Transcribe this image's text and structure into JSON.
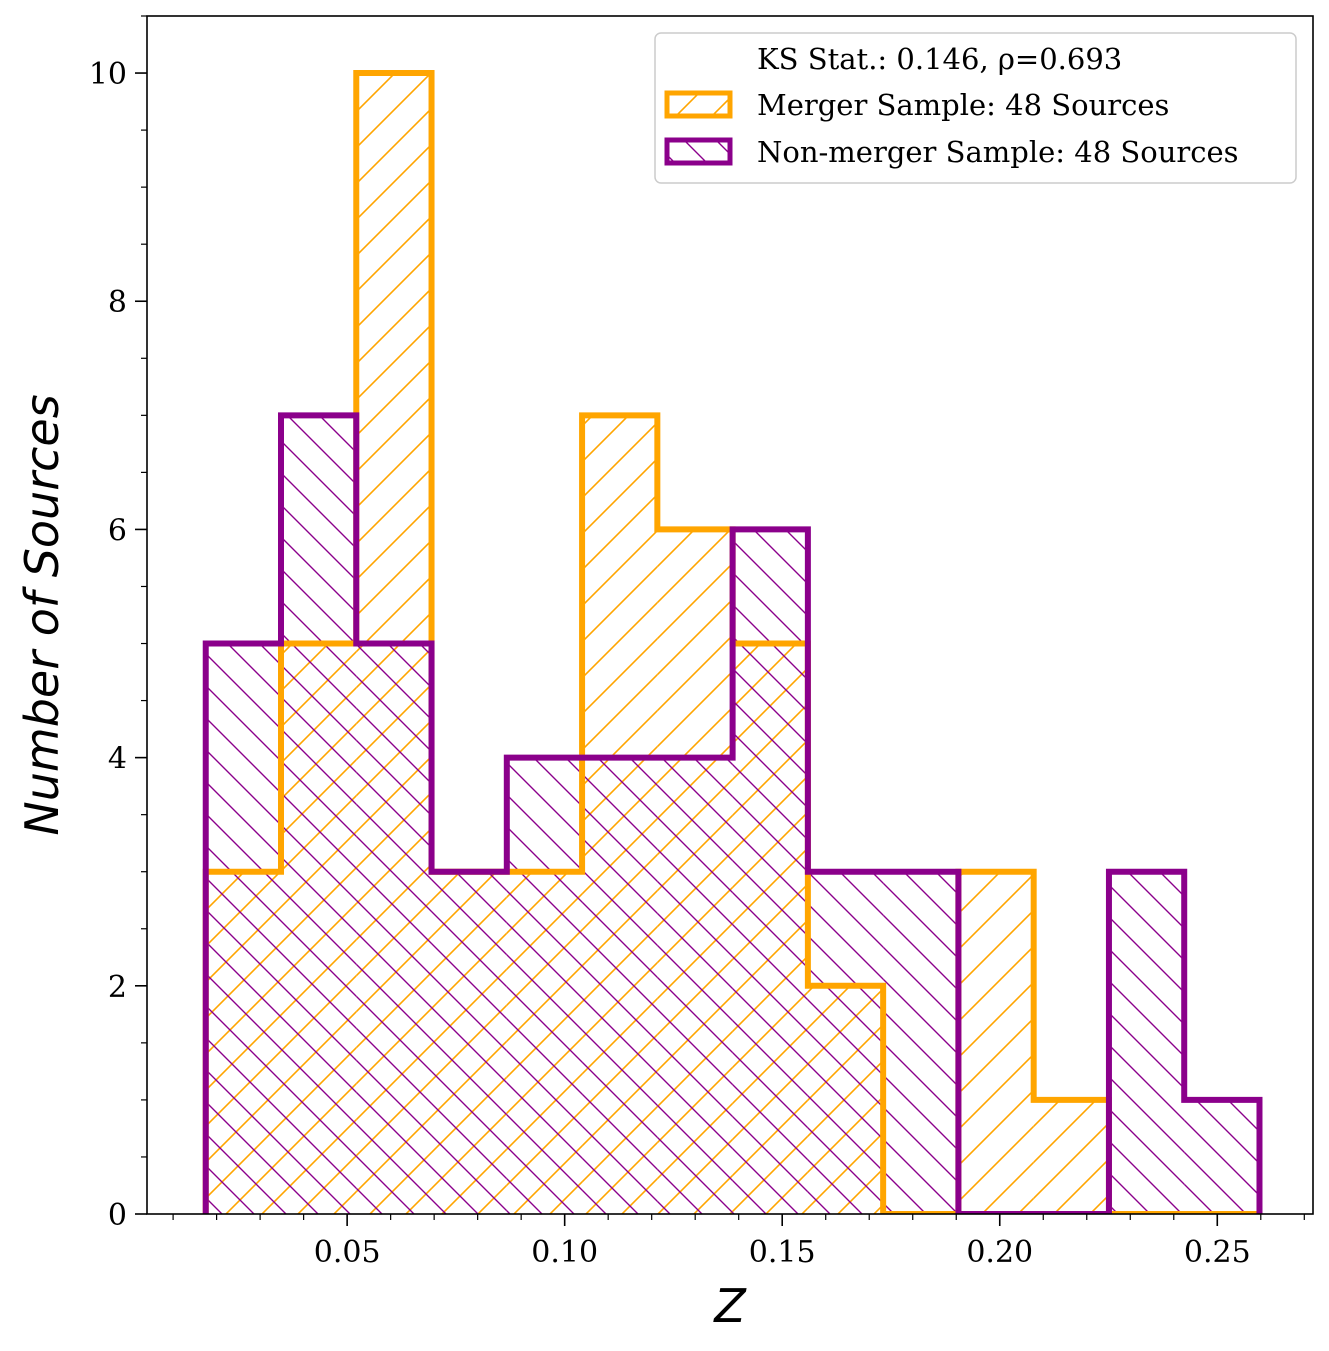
{
  "chart_data": {
    "type": "histogram",
    "title": "",
    "xlabel": "Z",
    "ylabel": "Number of Sources",
    "xlim": [
      0.004,
      0.272
    ],
    "ylim": [
      0,
      10.5
    ],
    "xticks": [
      0.05,
      0.1,
      0.15,
      0.2,
      0.25
    ],
    "xtick_labels": [
      "0.05",
      "0.10",
      "0.15",
      "0.20",
      "0.25"
    ],
    "yticks": [
      0,
      2,
      4,
      6,
      8,
      10
    ],
    "ytick_labels": [
      "0",
      "2",
      "4",
      "6",
      "8",
      "10"
    ],
    "bin_edges": [
      0.0175,
      0.0348,
      0.0521,
      0.0694,
      0.0867,
      0.104,
      0.1213,
      0.1386,
      0.1559,
      0.1732,
      0.1905,
      0.2078,
      0.2251,
      0.2424,
      0.2597
    ],
    "series": [
      {
        "name": "Merger Sample: 48 Sources",
        "color": "#ffa500",
        "hatch": "/",
        "values": [
          3,
          5,
          10,
          3,
          3,
          7,
          6,
          5,
          2,
          0,
          3,
          1,
          0,
          0
        ]
      },
      {
        "name": "Non-merger Sample: 48 Sources",
        "color": "#8b008b",
        "hatch": "\\",
        "values": [
          5,
          7,
          5,
          3,
          4,
          4,
          4,
          6,
          3,
          3,
          0,
          0,
          3,
          1
        ]
      }
    ],
    "legend": {
      "position": "top-right",
      "header": "KS Stat.: 0.146, ρ=0.693",
      "entries": [
        "Merger Sample: 48 Sources",
        "Non-merger Sample: 48 Sources"
      ]
    }
  }
}
